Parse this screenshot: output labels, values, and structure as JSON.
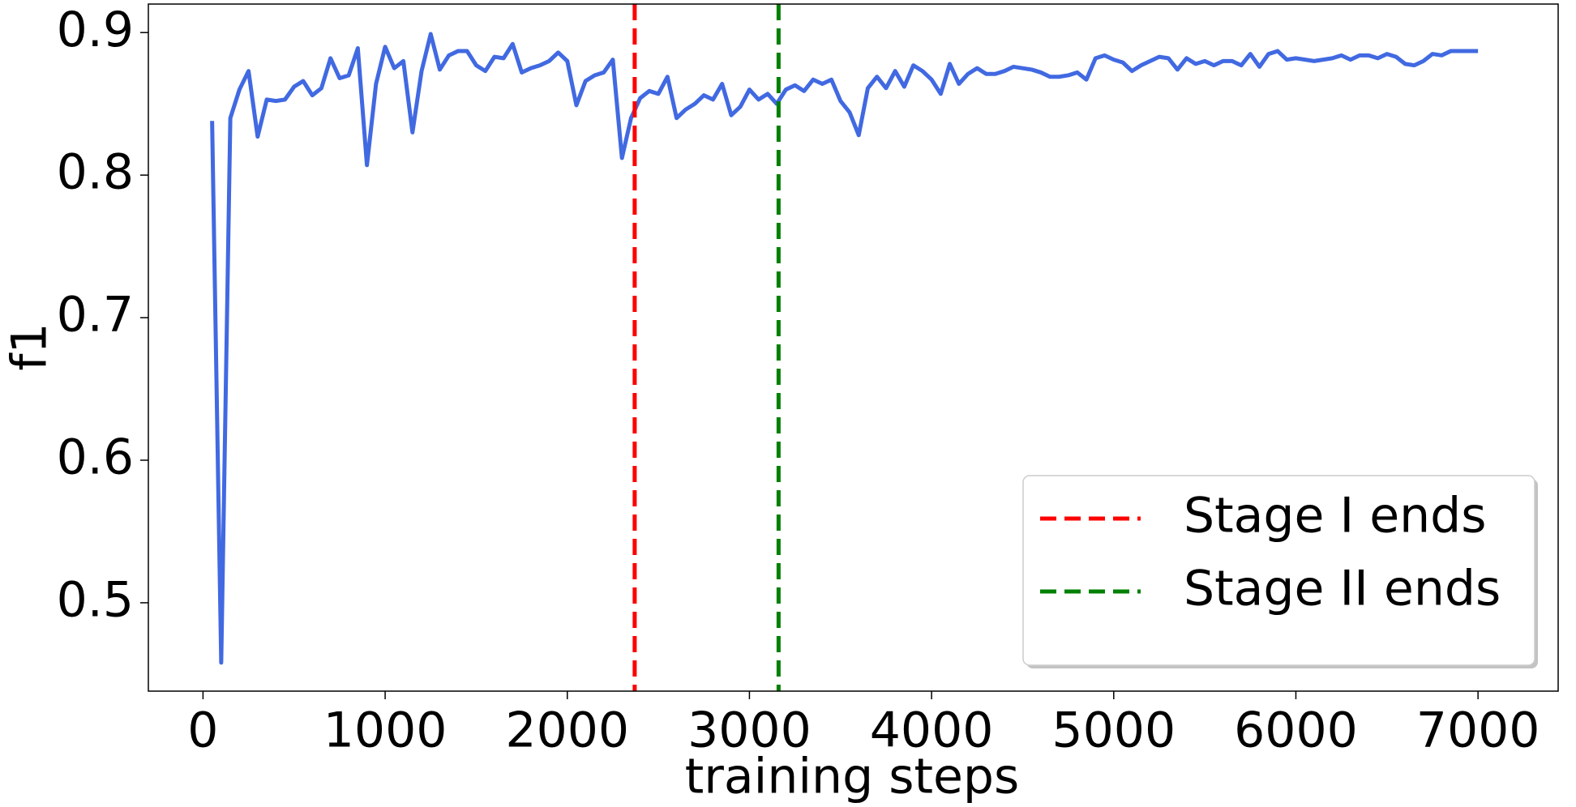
{
  "chart_data": {
    "type": "line",
    "xlabel": "training steps",
    "ylabel": "f1",
    "x": [
      50,
      100,
      150,
      200,
      250,
      300,
      350,
      400,
      450,
      500,
      550,
      600,
      650,
      700,
      750,
      800,
      850,
      900,
      950,
      1000,
      1050,
      1100,
      1150,
      1200,
      1250,
      1300,
      1350,
      1400,
      1450,
      1500,
      1550,
      1600,
      1650,
      1700,
      1750,
      1800,
      1850,
      1900,
      1950,
      2000,
      2050,
      2100,
      2150,
      2200,
      2250,
      2300,
      2350,
      2400,
      2450,
      2500,
      2550,
      2600,
      2650,
      2700,
      2750,
      2800,
      2850,
      2900,
      2950,
      3000,
      3050,
      3100,
      3150,
      3200,
      3250,
      3300,
      3350,
      3400,
      3450,
      3500,
      3550,
      3600,
      3650,
      3700,
      3750,
      3800,
      3850,
      3900,
      3950,
      4000,
      4050,
      4100,
      4150,
      4200,
      4250,
      4300,
      4350,
      4400,
      4450,
      4500,
      4550,
      4600,
      4650,
      4700,
      4750,
      4800,
      4850,
      4900,
      4950,
      5000,
      5050,
      5100,
      5150,
      5200,
      5250,
      5300,
      5350,
      5400,
      5450,
      5500,
      5550,
      5600,
      5650,
      5700,
      5750,
      5800,
      5850,
      5900,
      5950,
      6000,
      6050,
      6100,
      6150,
      6200,
      6250,
      6300,
      6350,
      6400,
      6450,
      6500,
      6550,
      6600,
      6650,
      6700,
      6750,
      6800,
      6850,
      6900,
      6950,
      7000
    ],
    "series": [
      {
        "color": "#4169e1",
        "values": [
          0.838,
          0.458,
          0.84,
          0.86,
          0.873,
          0.827,
          0.853,
          0.852,
          0.853,
          0.862,
          0.866,
          0.856,
          0.861,
          0.882,
          0.868,
          0.87,
          0.889,
          0.807,
          0.864,
          0.89,
          0.875,
          0.88,
          0.83,
          0.873,
          0.899,
          0.874,
          0.884,
          0.887,
          0.887,
          0.877,
          0.873,
          0.883,
          0.882,
          0.892,
          0.872,
          0.875,
          0.877,
          0.88,
          0.886,
          0.88,
          0.849,
          0.866,
          0.87,
          0.872,
          0.881,
          0.812,
          0.84,
          0.854,
          0.859,
          0.857,
          0.869,
          0.84,
          0.846,
          0.85,
          0.856,
          0.853,
          0.864,
          0.842,
          0.848,
          0.86,
          0.853,
          0.857,
          0.85,
          0.86,
          0.863,
          0.859,
          0.867,
          0.864,
          0.867,
          0.852,
          0.844,
          0.828,
          0.861,
          0.869,
          0.861,
          0.873,
          0.862,
          0.877,
          0.873,
          0.867,
          0.857,
          0.878,
          0.864,
          0.871,
          0.875,
          0.871,
          0.871,
          0.873,
          0.876,
          0.875,
          0.874,
          0.872,
          0.869,
          0.869,
          0.87,
          0.872,
          0.867,
          0.882,
          0.884,
          0.881,
          0.879,
          0.873,
          0.877,
          0.88,
          0.883,
          0.882,
          0.874,
          0.882,
          0.878,
          0.88,
          0.877,
          0.88,
          0.88,
          0.877,
          0.885,
          0.876,
          0.885,
          0.887,
          0.881,
          0.882,
          0.881,
          0.88,
          0.881,
          0.882,
          0.884,
          0.881,
          0.884,
          0.884,
          0.882,
          0.885,
          0.883,
          0.878,
          0.877,
          0.88,
          0.885,
          0.884,
          0.887,
          0.887,
          0.887,
          0.887
        ]
      }
    ],
    "vlines": [
      {
        "x": 2370,
        "color": "#ff0000",
        "name": "Stage I ends"
      },
      {
        "x": 3160,
        "color": "#008000",
        "name": "Stage II ends"
      }
    ],
    "xlim": [
      -300,
      7440
    ],
    "ylim": [
      0.438,
      0.92
    ],
    "xticks": [
      0,
      1000,
      2000,
      3000,
      4000,
      5000,
      6000,
      7000
    ],
    "yticks": [
      0.5,
      0.6,
      0.7,
      0.8,
      0.9
    ],
    "grid": false,
    "legend": "lower right"
  }
}
